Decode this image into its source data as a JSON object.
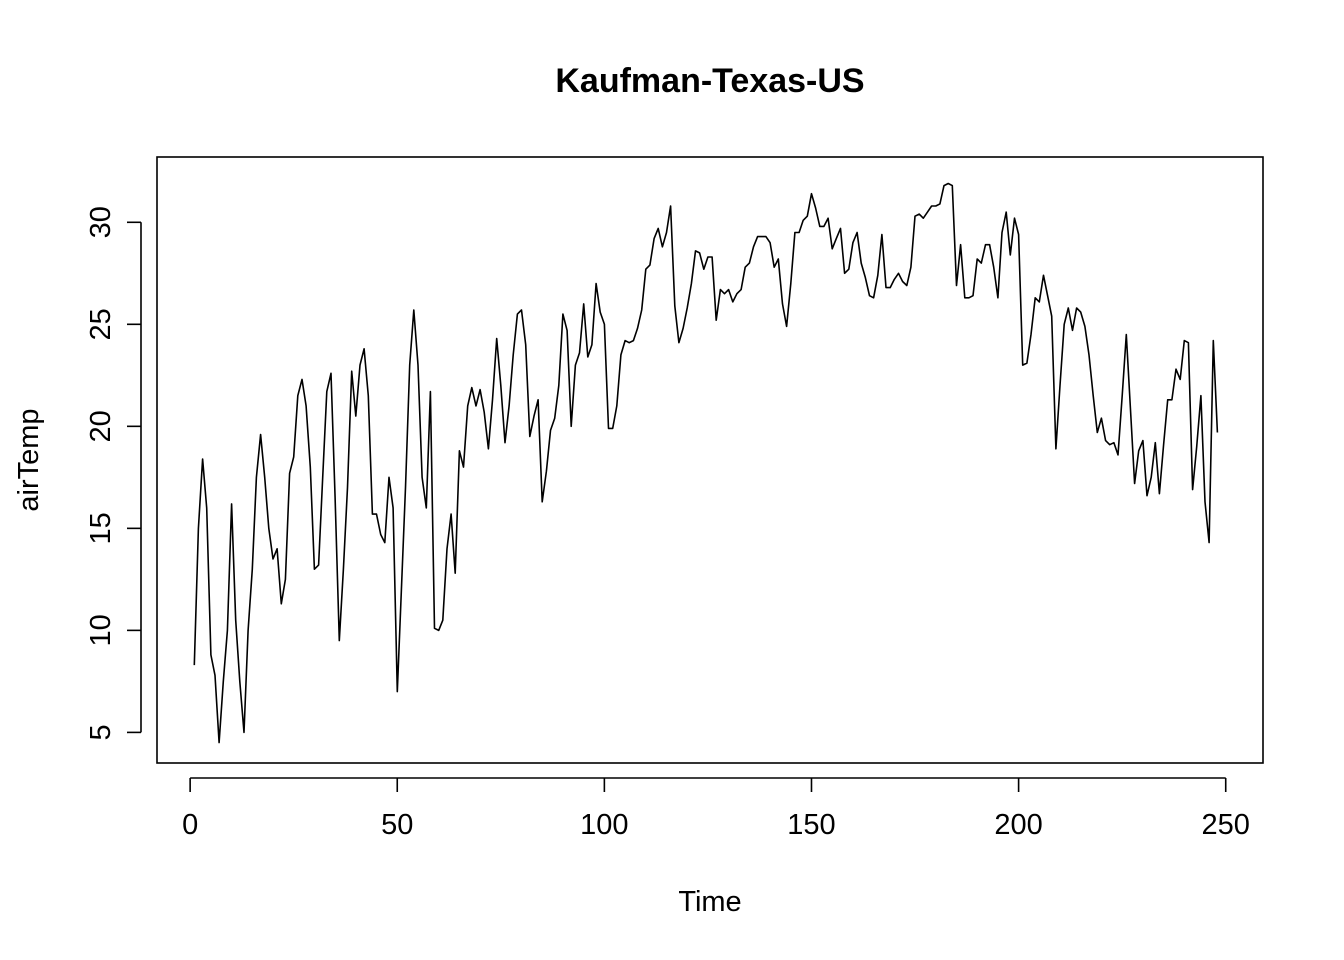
{
  "chart_data": {
    "type": "line",
    "title": "Kaufman-Texas-US",
    "xlabel": "Time",
    "ylabel": "airTemp",
    "xlim": [
      -8,
      259
    ],
    "ylim": [
      3.5,
      33.2
    ],
    "xticks": [
      0,
      50,
      100,
      150,
      200,
      250
    ],
    "yticks": [
      5,
      10,
      15,
      20,
      25,
      30
    ],
    "grid": false,
    "series": [
      {
        "x_start": 1,
        "color": "#000000",
        "values": [
          8.3,
          15.0,
          18.4,
          16.0,
          8.8,
          7.8,
          4.5,
          7.5,
          10.0,
          16.2,
          10.5,
          7.5,
          5.0,
          10.0,
          13.0,
          17.5,
          19.6,
          17.5,
          15.0,
          13.5,
          14.0,
          11.3,
          12.5,
          17.7,
          18.5,
          21.5,
          22.3,
          21.0,
          18.0,
          13.0,
          13.2,
          17.5,
          21.7,
          22.6,
          16.5,
          9.5,
          13.0,
          17.0,
          22.7,
          20.5,
          23.0,
          23.8,
          21.5,
          15.7,
          15.7,
          14.7,
          14.3,
          17.5,
          16.0,
          7.0,
          12.0,
          17.0,
          23.0,
          25.7,
          23.0,
          17.5,
          16.0,
          21.7,
          10.1,
          10.0,
          10.5,
          14.0,
          15.7,
          12.8,
          18.8,
          18.0,
          21.0,
          21.9,
          21.0,
          21.8,
          20.7,
          18.9,
          21.3,
          24.3,
          22.0,
          19.2,
          21.0,
          23.5,
          25.5,
          25.7,
          24.0,
          19.5,
          20.5,
          21.3,
          16.3,
          17.8,
          19.8,
          20.4,
          22.0,
          25.5,
          24.7,
          20.0,
          23.0,
          23.6,
          26.0,
          23.4,
          24.0,
          27.0,
          25.6,
          25.0,
          19.9,
          19.9,
          21.0,
          23.5,
          24.2,
          24.1,
          24.2,
          24.8,
          25.7,
          27.7,
          27.9,
          29.2,
          29.7,
          28.8,
          29.5,
          30.8,
          25.9,
          24.1,
          24.8,
          25.8,
          27.0,
          28.6,
          28.5,
          27.7,
          28.3,
          28.3,
          25.2,
          26.7,
          26.5,
          26.7,
          26.1,
          26.5,
          26.7,
          27.8,
          28.0,
          28.8,
          29.3,
          29.3,
          29.3,
          29.0,
          27.8,
          28.2,
          26.0,
          24.9,
          27.0,
          29.5,
          29.5,
          30.1,
          30.3,
          31.4,
          30.7,
          29.8,
          29.8,
          30.2,
          28.7,
          29.2,
          29.7,
          27.5,
          27.7,
          29.0,
          29.5,
          28.0,
          27.3,
          26.4,
          26.3,
          27.4,
          29.4,
          26.8,
          26.8,
          27.2,
          27.5,
          27.1,
          26.9,
          27.8,
          30.3,
          30.4,
          30.2,
          30.5,
          30.8,
          30.8,
          30.9,
          31.8,
          31.9,
          31.8,
          26.9,
          28.9,
          26.3,
          26.3,
          26.4,
          28.2,
          28.0,
          28.9,
          28.9,
          27.8,
          26.3,
          29.5,
          30.5,
          28.4,
          30.2,
          29.4,
          23.0,
          23.1,
          24.5,
          26.3,
          26.1,
          27.4,
          26.4,
          25.4,
          18.9,
          22.0,
          25.0,
          25.8,
          24.7,
          25.8,
          25.6,
          24.9,
          23.5,
          21.5,
          19.7,
          20.4,
          19.3,
          19.1,
          19.2,
          18.6,
          21.5,
          24.5,
          20.9,
          17.2,
          18.8,
          19.3,
          16.6,
          17.5,
          19.2,
          16.7,
          19.1,
          21.3,
          21.3,
          22.8,
          22.3,
          24.2,
          24.1,
          16.9,
          19.0,
          21.5,
          16.3,
          14.3,
          24.2,
          19.7
        ]
      }
    ]
  }
}
